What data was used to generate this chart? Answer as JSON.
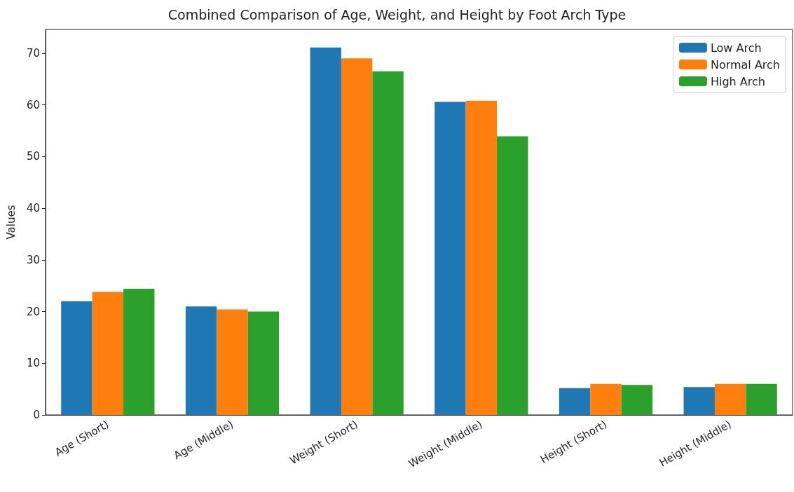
{
  "chart_data": {
    "type": "bar",
    "title": "Combined Comparison of Age, Weight, and Height by Foot Arch Type",
    "ylabel": "Values",
    "categories": [
      "Age (Short)",
      "Age (Middle)",
      "Weight (Short)",
      "Weight (Middle)",
      "Height (Short)",
      "Height (Middle)"
    ],
    "series": [
      {
        "name": "Low Arch",
        "color": "#1f77b4",
        "values": [
          22.0,
          21.0,
          71.1,
          60.6,
          5.2,
          5.4
        ]
      },
      {
        "name": "Normal Arch",
        "color": "#ff7f0e",
        "values": [
          23.8,
          20.4,
          69.0,
          60.8,
          6.0,
          6.0
        ]
      },
      {
        "name": "High Arch",
        "color": "#2ca02c",
        "values": [
          24.4,
          20.0,
          66.5,
          53.9,
          5.8,
          6.0
        ]
      }
    ],
    "ylim": [
      0,
      74.6
    ],
    "yticks": [
      0,
      10,
      20,
      30,
      40,
      50,
      60,
      70
    ],
    "grid": false,
    "legend": "top right"
  }
}
